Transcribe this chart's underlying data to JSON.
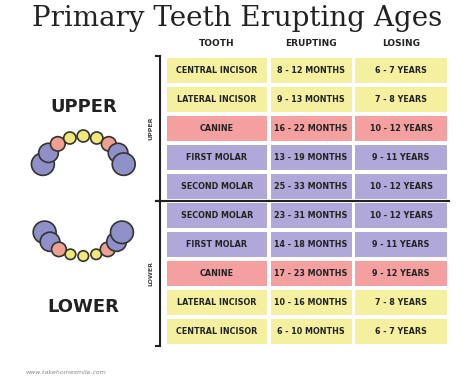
{
  "title": "Primary Teeth Erupting Ages",
  "title_fontsize": 20,
  "background_color": "#ffffff",
  "watermark": "www.takehomesmile.com",
  "headers": [
    "TOOTH",
    "ERUPTING",
    "LOSING"
  ],
  "rows": [
    {
      "section": "UPPER",
      "tooth": "CENTRAL INCISOR",
      "erupting": "8 - 12 MONTHS",
      "losing": "6 - 7 YEARS",
      "color": "yellow"
    },
    {
      "section": "UPPER",
      "tooth": "LATERAL INCISOR",
      "erupting": "9 - 13 MONTHS",
      "losing": "7 - 8 YEARS",
      "color": "yellow"
    },
    {
      "section": "UPPER",
      "tooth": "CANINE",
      "erupting": "16 - 22 MONTHS",
      "losing": "10 - 12 YEARS",
      "color": "red"
    },
    {
      "section": "UPPER",
      "tooth": "FIRST MOLAR",
      "erupting": "13 - 19 MONTHS",
      "losing": "9 - 11 YEARS",
      "color": "purple"
    },
    {
      "section": "UPPER",
      "tooth": "SECOND MOLAR",
      "erupting": "25 - 33 MONTHS",
      "losing": "10 - 12 YEARS",
      "color": "purple"
    },
    {
      "section": "LOWER",
      "tooth": "SECOND MOLAR",
      "erupting": "23 - 31 MONTHS",
      "losing": "10 - 12 YEARS",
      "color": "purple"
    },
    {
      "section": "LOWER",
      "tooth": "FIRST MOLAR",
      "erupting": "14 - 18 MONTHS",
      "losing": "9 - 11 YEARS",
      "color": "purple"
    },
    {
      "section": "LOWER",
      "tooth": "CANINE",
      "erupting": "17 - 23 MONTHS",
      "losing": "9 - 12 YEARS",
      "color": "red"
    },
    {
      "section": "LOWER",
      "tooth": "LATERAL INCISOR",
      "erupting": "10 - 16 MONTHS",
      "losing": "7 - 8 YEARS",
      "color": "yellow"
    },
    {
      "section": "LOWER",
      "tooth": "CENTRAL INCISOR",
      "erupting": "6 - 10 MONTHS",
      "losing": "6 - 7 YEARS",
      "color": "yellow"
    }
  ],
  "color_map": {
    "yellow": "#f5f0a0",
    "red": "#f5a0a0",
    "purple": "#b0a8d8"
  },
  "tooth_colors": {
    "yellow": "#f0e878",
    "red": "#f0a090",
    "purple": "#9090c8"
  },
  "divider_color": "#222222",
  "text_color": "#222222",
  "section_label_color": "#444444",
  "upper_teeth_colors": [
    "purple",
    "purple",
    "red",
    "yellow",
    "yellow",
    "yellow",
    "red",
    "purple",
    "purple"
  ],
  "upper_teeth_sizes": [
    1.4,
    1.2,
    0.9,
    0.75,
    0.75,
    0.75,
    0.9,
    1.2,
    1.4
  ],
  "lower_teeth_colors": [
    "purple",
    "purple",
    "red",
    "yellow",
    "yellow",
    "yellow",
    "red",
    "purple",
    "purple"
  ],
  "lower_teeth_sizes": [
    1.4,
    1.2,
    0.9,
    0.65,
    0.65,
    0.65,
    0.9,
    1.2,
    1.4
  ]
}
